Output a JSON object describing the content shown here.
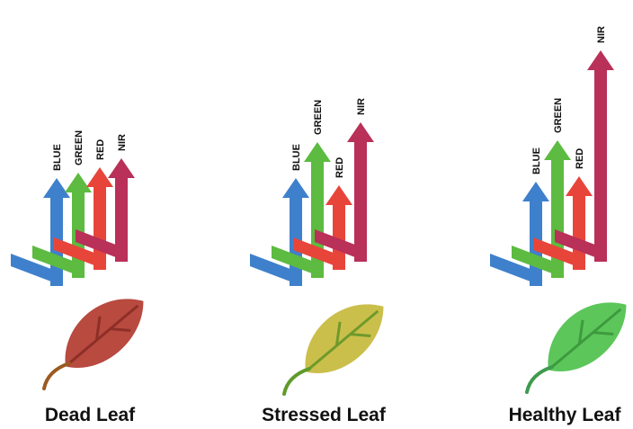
{
  "panels": [
    {
      "caption": "Dead Leaf",
      "bands": [
        "BLUE",
        "GREEN",
        "RED",
        "NIR"
      ]
    },
    {
      "caption": "Stressed Leaf",
      "bands": [
        "BLUE",
        "GREEN",
        "RED",
        "NIR"
      ]
    },
    {
      "caption": "Healthy Leaf",
      "bands": [
        "BLUE",
        "GREEN",
        "RED",
        "NIR"
      ]
    }
  ]
}
